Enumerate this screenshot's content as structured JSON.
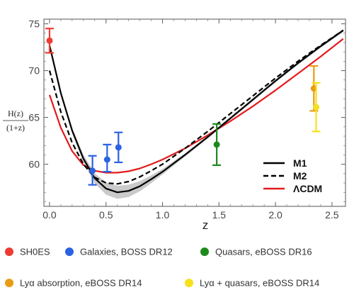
{
  "chart_data": {
    "type": "line",
    "ylabel_top": "H(z)",
    "ylabel_bottom": "(1+z)",
    "xlabel": "z",
    "xlim": [
      -0.05,
      2.62
    ],
    "ylim": [
      55.5,
      75.5
    ],
    "x_ticks": [
      "0.0",
      "0.5",
      "1.0",
      "1.5",
      "2.0",
      "2.5"
    ],
    "x_tick_values": [
      0.0,
      0.5,
      1.0,
      1.5,
      2.0,
      2.5
    ],
    "y_ticks": [
      "60",
      "65",
      "70",
      "75"
    ],
    "y_tick_values": [
      60,
      65,
      70,
      75
    ],
    "grid": false,
    "curve_legend_placement": "bottom-right",
    "series": [
      {
        "name": "M1",
        "style": "solid",
        "color": "#000000",
        "band": true,
        "x": [
          0.0,
          0.1,
          0.2,
          0.3,
          0.4,
          0.5,
          0.6,
          0.7,
          0.8,
          0.9,
          1.0,
          1.2,
          1.4,
          1.6,
          1.8,
          2.0,
          2.2,
          2.4,
          2.6
        ],
        "y": [
          72.7,
          67.6,
          63.6,
          60.6,
          58.5,
          57.4,
          57.0,
          57.15,
          57.65,
          58.4,
          59.2,
          61.0,
          62.9,
          64.9,
          66.9,
          68.9,
          70.8,
          72.6,
          74.3
        ]
      },
      {
        "name": "M2",
        "style": "dashed",
        "color": "#000000",
        "x": [
          0.0,
          0.1,
          0.2,
          0.3,
          0.4,
          0.5,
          0.6,
          0.7,
          0.8,
          0.9,
          1.0,
          1.2,
          1.4,
          1.6,
          1.8,
          2.0,
          2.2,
          2.4,
          2.6
        ],
        "y": [
          70.0,
          65.6,
          62.3,
          60.0,
          58.6,
          58.0,
          57.9,
          58.15,
          58.65,
          59.3,
          60.0,
          61.7,
          63.5,
          65.4,
          67.3,
          69.2,
          71.0,
          72.7,
          74.3
        ]
      },
      {
        "name": "ΛCDM",
        "style": "solid",
        "color": "#e31a1c",
        "x": [
          0.0,
          0.1,
          0.2,
          0.3,
          0.4,
          0.5,
          0.6,
          0.7,
          0.8,
          0.9,
          1.0,
          1.2,
          1.4,
          1.6,
          1.8,
          2.0,
          2.2,
          2.4,
          2.6
        ],
        "y": [
          67.4,
          63.9,
          61.4,
          59.9,
          59.3,
          59.1,
          59.1,
          59.25,
          59.55,
          60.0,
          60.5,
          61.7,
          63.1,
          64.6,
          66.2,
          67.9,
          69.7,
          71.5,
          73.4
        ]
      }
    ],
    "points": [
      {
        "group": "SH0ES",
        "color": "#ee3b33",
        "x": 0.0,
        "y": 73.2,
        "err_low": 1.3,
        "err_high": 1.3
      },
      {
        "group": "Galaxies, BOSS DR12",
        "color": "#2b62e3",
        "x": 0.38,
        "y": 59.3,
        "err_low": 1.5,
        "err_high": 1.6
      },
      {
        "group": "Galaxies, BOSS DR12",
        "color": "#2b62e3",
        "x": 0.51,
        "y": 60.5,
        "err_low": 1.3,
        "err_high": 1.6
      },
      {
        "group": "Galaxies, BOSS DR12",
        "color": "#2b62e3",
        "x": 0.61,
        "y": 61.8,
        "err_low": 1.6,
        "err_high": 1.6
      },
      {
        "group": "Quasars, eBOSS DR16",
        "color": "#1d8a1d",
        "x": 1.48,
        "y": 62.1,
        "err_low": 2.2,
        "err_high": 2.2
      },
      {
        "group": "Lyα absorption, eBOSS DR14",
        "color": "#e89c14",
        "x": 2.34,
        "y": 68.1,
        "err_low": 2.4,
        "err_high": 2.4
      },
      {
        "group": "Lyα + quasars, eBOSS DR14",
        "color": "#f5e11c",
        "x": 2.36,
        "y": 66.1,
        "err_low": 2.6,
        "err_high": 2.6
      }
    ]
  },
  "legend_groups": [
    {
      "label": "SH0ES",
      "color": "#ee3b33"
    },
    {
      "label": "Galaxies, BOSS DR12",
      "color": "#2b62e3"
    },
    {
      "label": "Quasars, eBOSS DR16",
      "color": "#1d8a1d"
    },
    {
      "label": "Lyα absorption, eBOSS DR14",
      "color": "#e89c14"
    },
    {
      "label": "Lyα + quasars, eBOSS DR14",
      "color": "#f5e11c"
    }
  ]
}
